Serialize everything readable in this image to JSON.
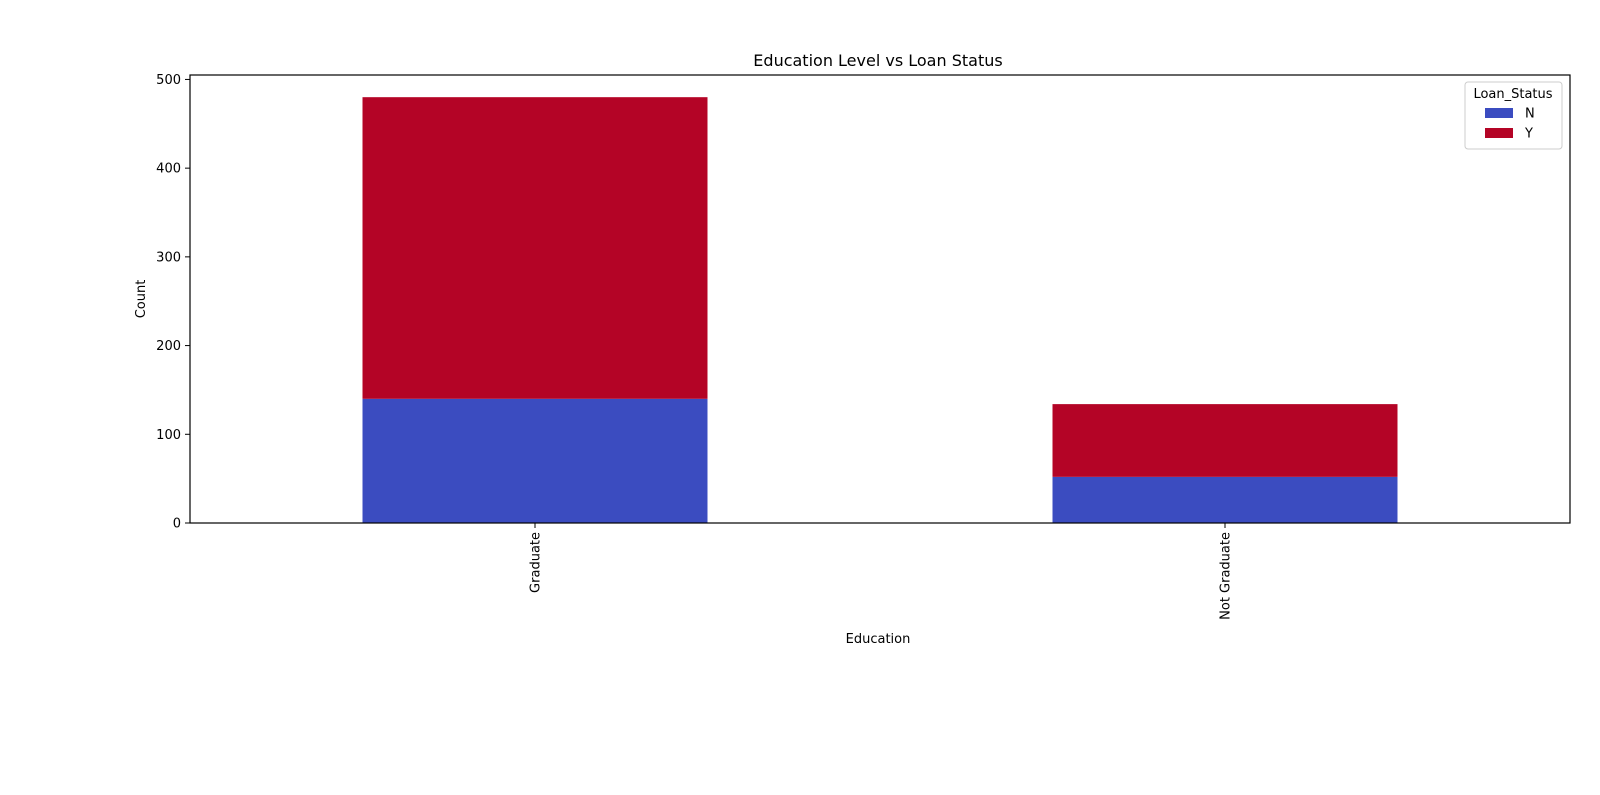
{
  "chart_data": {
    "type": "bar",
    "stacked": true,
    "title": "Education Level vs Loan Status",
    "xlabel": "Education",
    "ylabel": "Count",
    "categories": [
      "Graduate",
      "Not Graduate"
    ],
    "series": [
      {
        "name": "N",
        "values": [
          140,
          52
        ],
        "color": "#3b4cc0"
      },
      {
        "name": "Y",
        "values": [
          340,
          82
        ],
        "color": "#b40426"
      }
    ],
    "ylim": [
      0,
      505
    ],
    "yticks": [
      0,
      100,
      200,
      300,
      400,
      500
    ],
    "grid": false,
    "legend": {
      "title": "Loan_Status",
      "placement": "top-right"
    }
  }
}
